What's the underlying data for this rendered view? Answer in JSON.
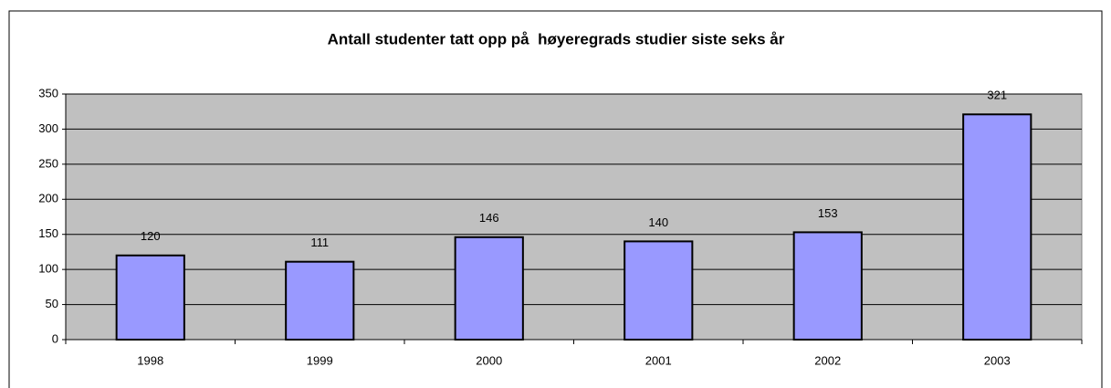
{
  "chart_data": {
    "type": "bar",
    "title": "Antall studenter tatt opp på  høyeregrads studier siste seks år",
    "categories": [
      "1998",
      "1999",
      "2000",
      "2001",
      "2002",
      "2003"
    ],
    "values": [
      120,
      111,
      146,
      140,
      153,
      321
    ],
    "color": "#9999ff",
    "plot_background": "#c0c0c0",
    "ylim": [
      0,
      350
    ],
    "yticks": [
      0,
      50,
      100,
      150,
      200,
      250,
      300,
      350
    ],
    "grid": true,
    "data_labels": true
  }
}
